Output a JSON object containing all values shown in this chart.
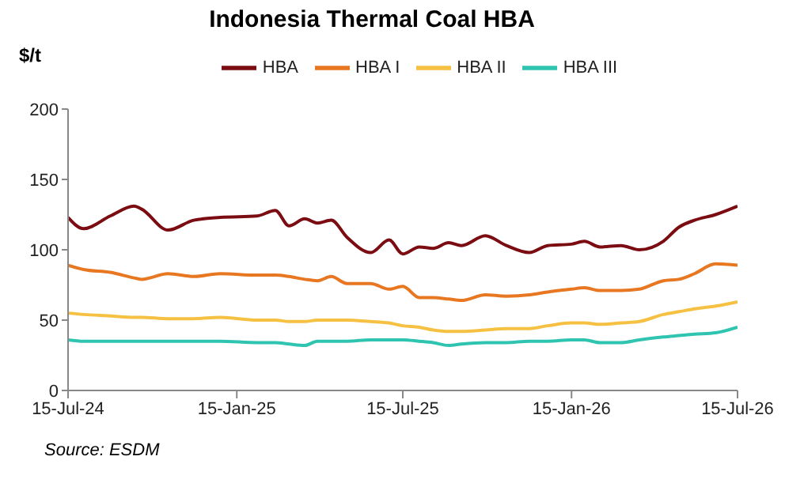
{
  "chart_data": {
    "type": "line",
    "title": "Indonesia Thermal Coal HBA",
    "ylabel": "$/t",
    "annotations": [
      "Source: ESDM"
    ],
    "x": [
      "2024-07-15",
      "2024-08-01",
      "2024-08-30",
      "2024-09-25",
      "2024-10-03",
      "2024-11-01",
      "2024-11-29",
      "2024-12-28",
      "2025-02-06",
      "2025-02-26",
      "2025-03-13",
      "2025-03-30",
      "2025-04-13",
      "2025-04-28",
      "2025-05-15",
      "2025-06-10",
      "2025-06-30",
      "2025-07-15",
      "2025-08-02",
      "2025-08-17",
      "2025-09-03",
      "2025-09-17",
      "2025-10-13",
      "2025-11-05",
      "2025-11-30",
      "2025-12-20",
      "2026-01-15",
      "2026-01-29",
      "2026-02-15",
      "2026-03-10",
      "2026-03-30",
      "2026-04-25",
      "2026-05-12",
      "2026-05-29",
      "2026-06-21",
      "2026-07-15"
    ],
    "series": [
      {
        "name": "HBA",
        "color": "#7b0d12",
        "values": [
          123,
          115,
          124,
          131,
          129,
          114,
          121,
          123,
          124,
          128,
          117,
          122,
          119,
          121,
          109,
          98,
          107,
          97,
          102,
          101,
          105,
          103,
          110,
          103,
          98,
          103,
          104,
          106,
          102,
          103,
          100,
          106,
          116,
          121,
          125,
          131
        ]
      },
      {
        "name": "HBA I",
        "color": "#e87722",
        "values": [
          89,
          86,
          84,
          80,
          79,
          83,
          81,
          83,
          82,
          82,
          81,
          79,
          78,
          81,
          76,
          76,
          72,
          74,
          66,
          66,
          65,
          64,
          68,
          67,
          68,
          70,
          72,
          73,
          71,
          71,
          72,
          78,
          79,
          83,
          90,
          89
        ]
      },
      {
        "name": "HBA II",
        "color": "#f6c142",
        "values": [
          55,
          54,
          53,
          52,
          52,
          51,
          51,
          52,
          50,
          50,
          49,
          49,
          50,
          50,
          50,
          49,
          48,
          46,
          45,
          43,
          42,
          42,
          43,
          44,
          44,
          46,
          48,
          48,
          47,
          48,
          49,
          54,
          56,
          58,
          60,
          63
        ]
      },
      {
        "name": "HBA III",
        "color": "#2ec4b0",
        "values": [
          36,
          35,
          35,
          35,
          35,
          35,
          35,
          35,
          34,
          34,
          33,
          32,
          35,
          35,
          35,
          36,
          36,
          36,
          35,
          34,
          32,
          33,
          34,
          34,
          35,
          35,
          36,
          36,
          34,
          34,
          36,
          38,
          39,
          40,
          41,
          45
        ]
      }
    ],
    "xlim": [
      "2024-07-15",
      "2026-07-15"
    ],
    "xticks": [
      {
        "value": "2024-07-15",
        "label": "15-Jul-24"
      },
      {
        "value": "2025-01-15",
        "label": "15-Jan-25"
      },
      {
        "value": "2025-07-15",
        "label": "15-Jul-25"
      },
      {
        "value": "2026-01-15",
        "label": "15-Jan-26"
      },
      {
        "value": "2026-07-15",
        "label": "15-Jul-26"
      }
    ],
    "ylim": [
      0,
      200
    ],
    "yticks": [
      0,
      50,
      100,
      150,
      200
    ],
    "grid": false,
    "legend": "top",
    "marker": "none"
  }
}
